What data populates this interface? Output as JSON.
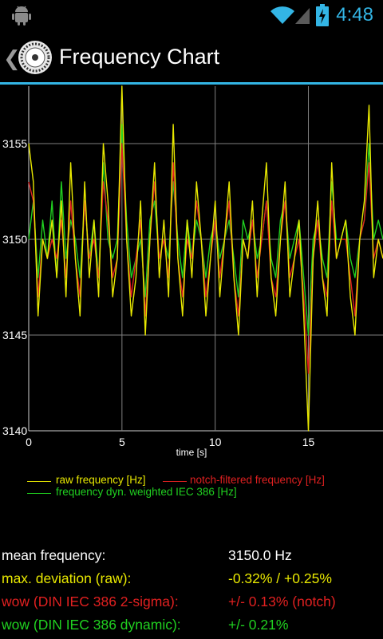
{
  "status_bar": {
    "time": "4:48",
    "icons": [
      "android-debug-icon",
      "wifi-icon",
      "cell-signal-icon",
      "battery-charging-icon"
    ]
  },
  "action_bar": {
    "title": "Frequency Chart",
    "icon": "reel-icon",
    "accent_color": "#33b5e5"
  },
  "chart_data": {
    "type": "line",
    "xlabel": "time [s]",
    "ylabel": "",
    "xlim": [
      0,
      19
    ],
    "ylim": [
      3140,
      3158
    ],
    "x_ticks": [
      0,
      5,
      10,
      15
    ],
    "y_ticks": [
      3140,
      3145,
      3150,
      3155
    ],
    "grid": true,
    "legend_position": "bottom",
    "series": [
      {
        "name": "raw frequency [Hz]",
        "color": "#e8e800",
        "x": [
          0,
          0.25,
          0.5,
          0.75,
          1,
          1.25,
          1.5,
          1.75,
          2,
          2.25,
          2.5,
          2.75,
          3,
          3.25,
          3.5,
          3.75,
          4,
          4.25,
          4.5,
          4.75,
          5,
          5.25,
          5.5,
          5.75,
          6,
          6.25,
          6.5,
          6.75,
          7,
          7.25,
          7.5,
          7.75,
          8,
          8.25,
          8.5,
          8.75,
          9,
          9.25,
          9.5,
          9.75,
          10,
          10.25,
          10.5,
          10.75,
          11,
          11.25,
          11.5,
          11.75,
          12,
          12.25,
          12.5,
          12.75,
          13,
          13.25,
          13.5,
          13.75,
          14,
          14.25,
          14.5,
          14.75,
          15,
          15.25,
          15.5,
          15.75,
          16,
          16.25,
          16.5,
          16.75,
          17,
          17.25,
          17.5,
          17.75,
          18,
          18.25,
          18.5,
          18.75,
          19
        ],
        "y": [
          3155,
          3153,
          3146,
          3150,
          3149,
          3151,
          3148,
          3152,
          3147,
          3154,
          3149,
          3146,
          3153,
          3148,
          3151,
          3147,
          3155,
          3152,
          3147,
          3149,
          3158,
          3150,
          3146,
          3148,
          3152,
          3145,
          3150,
          3154,
          3148,
          3151,
          3147,
          3156,
          3149,
          3146,
          3151,
          3148,
          3153,
          3150,
          3146,
          3149,
          3152,
          3147,
          3150,
          3153,
          3148,
          3145,
          3150,
          3149,
          3152,
          3147,
          3151,
          3154,
          3148,
          3146,
          3150,
          3153,
          3147,
          3149,
          3151,
          3146,
          3140,
          3149,
          3152,
          3148,
          3146,
          3154,
          3149,
          3150,
          3151,
          3147,
          3145,
          3150,
          3152,
          3157,
          3148,
          3150,
          3149
        ]
      },
      {
        "name": "notch-filtered frequency [Hz]",
        "color": "#e02020",
        "x": [
          0,
          0.25,
          0.5,
          0.75,
          1,
          1.25,
          1.5,
          1.75,
          2,
          2.25,
          2.5,
          2.75,
          3,
          3.25,
          3.5,
          3.75,
          4,
          4.25,
          4.5,
          4.75,
          5,
          5.25,
          5.5,
          5.75,
          6,
          6.25,
          6.5,
          6.75,
          7,
          7.25,
          7.5,
          7.75,
          8,
          8.25,
          8.5,
          8.75,
          9,
          9.25,
          9.5,
          9.75,
          10,
          10.25,
          10.5,
          10.75,
          11,
          11.25,
          11.5,
          11.75,
          12,
          12.25,
          12.5,
          12.75,
          13,
          13.25,
          13.5,
          13.75,
          14,
          14.25,
          14.5,
          14.75,
          15,
          15.25,
          15.5,
          15.75,
          16,
          16.25,
          16.5,
          16.75,
          17,
          17.25,
          17.5,
          17.75,
          18,
          18.25,
          18.5,
          18.75,
          19
        ],
        "y": [
          3153,
          3152,
          3147,
          3150,
          3149,
          3150,
          3149,
          3151,
          3148,
          3152,
          3149,
          3147,
          3152,
          3149,
          3150,
          3148,
          3153,
          3151,
          3148,
          3149,
          3155,
          3150,
          3147,
          3149,
          3151,
          3146,
          3150,
          3153,
          3149,
          3150,
          3148,
          3154,
          3149,
          3147,
          3150,
          3149,
          3152,
          3150,
          3147,
          3149,
          3151,
          3148,
          3150,
          3152,
          3148,
          3146,
          3150,
          3149,
          3151,
          3148,
          3150,
          3152,
          3148,
          3147,
          3150,
          3152,
          3148,
          3149,
          3150,
          3147,
          3143,
          3149,
          3151,
          3148,
          3147,
          3152,
          3149,
          3150,
          3150,
          3148,
          3146,
          3150,
          3151,
          3154,
          3149,
          3150,
          3149
        ]
      },
      {
        "name": "frequency dyn. weighted IEC 386 [Hz]",
        "color": "#20d020",
        "x": [
          0,
          0.25,
          0.5,
          0.75,
          1,
          1.25,
          1.5,
          1.75,
          2,
          2.25,
          2.5,
          2.75,
          3,
          3.25,
          3.5,
          3.75,
          4,
          4.25,
          4.5,
          4.75,
          5,
          5.25,
          5.5,
          5.75,
          6,
          6.25,
          6.5,
          6.75,
          7,
          7.25,
          7.5,
          7.75,
          8,
          8.25,
          8.5,
          8.75,
          9,
          9.25,
          9.5,
          9.75,
          10,
          10.25,
          10.5,
          10.75,
          11,
          11.25,
          11.5,
          11.75,
          12,
          12.25,
          12.5,
          12.75,
          13,
          13.25,
          13.5,
          13.75,
          14,
          14.25,
          14.5,
          14.75,
          15,
          15.25,
          15.5,
          15.75,
          16,
          16.25,
          16.5,
          16.75,
          17,
          17.25,
          17.5,
          17.75,
          18,
          18.25,
          18.5,
          18.75,
          19
        ],
        "y": [
          3150,
          3152,
          3148,
          3151,
          3149,
          3152,
          3148,
          3153,
          3149,
          3151,
          3150,
          3148,
          3152,
          3149,
          3151,
          3148,
          3154,
          3150,
          3149,
          3150,
          3156,
          3151,
          3148,
          3149,
          3150,
          3147,
          3151,
          3152,
          3149,
          3150,
          3149,
          3153,
          3150,
          3148,
          3151,
          3149,
          3151,
          3150,
          3148,
          3150,
          3151,
          3149,
          3150,
          3151,
          3149,
          3147,
          3151,
          3150,
          3151,
          3149,
          3150,
          3152,
          3149,
          3148,
          3151,
          3152,
          3149,
          3150,
          3151,
          3148,
          3145,
          3150,
          3151,
          3149,
          3148,
          3153,
          3150,
          3150,
          3151,
          3149,
          3148,
          3150,
          3151,
          3155,
          3150,
          3151,
          3150
        ]
      }
    ]
  },
  "legend": {
    "raw": "raw frequency [Hz]",
    "notch": "notch-filtered frequency [Hz]",
    "weighted": "frequency dyn. weighted IEC 386 [Hz]"
  },
  "stats": {
    "mean_label": "mean frequency:",
    "mean_value": "3150.0 Hz",
    "maxdev_label": "max. deviation (raw):",
    "maxdev_value": "-0.32% / +0.25%",
    "wow_notch_label": "wow (DIN IEC 386 2-sigma):",
    "wow_notch_value": "+/- 0.13% (notch)",
    "wow_dyn_label": "wow (DIN IEC 386 dynamic):",
    "wow_dyn_value": "+/- 0.21%",
    "colors": {
      "white": "#ffffff",
      "yellow": "#e8e800",
      "red": "#e02020",
      "green": "#20d020"
    }
  }
}
